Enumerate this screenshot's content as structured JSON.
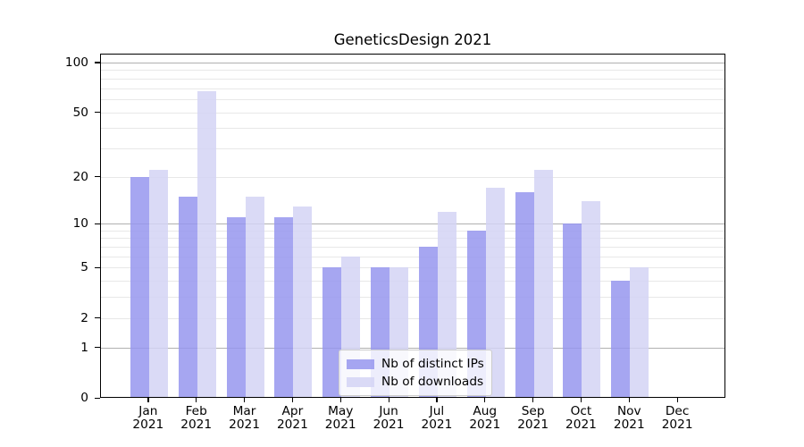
{
  "chart_data": {
    "type": "bar",
    "title": "GeneticsDesign 2021",
    "scale": "log1p",
    "categories": [
      "Jan 2021",
      "Feb 2021",
      "Mar 2021",
      "Apr 2021",
      "May 2021",
      "Jun 2021",
      "Jul 2021",
      "Aug 2021",
      "Sep 2021",
      "Oct 2021",
      "Nov 2021",
      "Dec 2021"
    ],
    "series": [
      {
        "key": "distinct-ips",
        "name": "Nb of distinct IPs",
        "color": "rgba(150,150,238,0.85)",
        "values": [
          20,
          15,
          11,
          11,
          5,
          5,
          7,
          9,
          16,
          10,
          4,
          0
        ]
      },
      {
        "key": "downloads",
        "name": "Nb of downloads",
        "color": "rgba(211,211,245,0.85)",
        "values": [
          22,
          67,
          15,
          13,
          6,
          5,
          12,
          17,
          22,
          14,
          5,
          0
        ]
      }
    ],
    "xlabel": "",
    "ylabel": "",
    "ylim": [
      0,
      113.2
    ],
    "y_ticks": [
      0,
      1,
      2,
      5,
      10,
      20,
      50,
      100
    ],
    "y_major_grid": [
      1,
      10,
      100
    ],
    "y_minor_grid": [
      2,
      3,
      4,
      5,
      6,
      7,
      8,
      9,
      20,
      30,
      40,
      50,
      60,
      70,
      80,
      90
    ],
    "grid": true,
    "legend_position": "lower center",
    "colors": {
      "major_grid": "#b0b0b0",
      "minor_grid": "#e8e8e8",
      "spine": "#000000",
      "legend_border": "#cccccc"
    }
  }
}
